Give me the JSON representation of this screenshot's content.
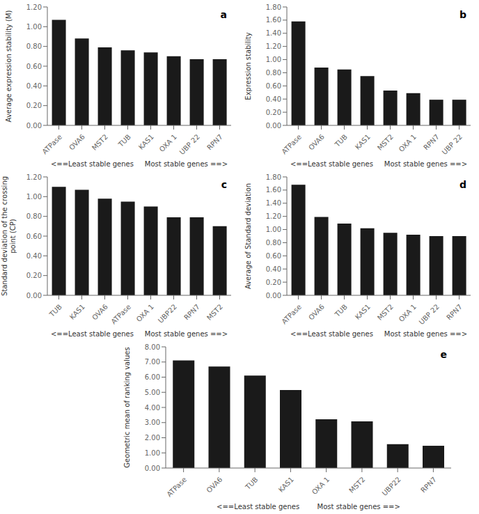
{
  "chart_data": [
    {
      "type": "bar",
      "title": "a",
      "categories": [
        "ATPase",
        "OVA6",
        "MST2",
        "TUB",
        "KAS1",
        "OXA 1",
        "UBP 22",
        "RPN7"
      ],
      "values": [
        1.07,
        0.88,
        0.79,
        0.76,
        0.74,
        0.7,
        0.67,
        0.67
      ],
      "color": "#1a1a1a",
      "x_label": "<==Least stable genes     Most stable genes ==>",
      "y_label": "Average expression stability (M)",
      "ylim": [
        0,
        1.2
      ],
      "yticks": [
        {
          "value": 0,
          "label": "0.00"
        },
        {
          "value": 0.2,
          "label": "0.20"
        },
        {
          "value": 0.4,
          "label": "0.40"
        },
        {
          "value": 0.6,
          "label": "0.60"
        },
        {
          "value": 0.8,
          "label": "0.80"
        },
        {
          "value": 1.0,
          "label": "1.00"
        },
        {
          "value": 1.2,
          "label": "1.20"
        }
      ],
      "grid": false
    },
    {
      "type": "bar",
      "title": "b",
      "categories": [
        "ATPase",
        "OVA6",
        "TUB",
        "KAS1",
        "MST2",
        "OXA 1",
        "RPN7",
        "UBP 22"
      ],
      "values": [
        1.58,
        0.88,
        0.85,
        0.75,
        0.53,
        0.49,
        0.39,
        0.39
      ],
      "color": "#1a1a1a",
      "x_label": "<==Least stable genes     Most stable genes ==>",
      "y_label": "Expression stability",
      "ylim": [
        0,
        1.8
      ],
      "yticks": [
        {
          "value": 0,
          "label": "0.00"
        },
        {
          "value": 0.2,
          "label": "0.20"
        },
        {
          "value": 0.4,
          "label": "0.40"
        },
        {
          "value": 0.6,
          "label": "0.60"
        },
        {
          "value": 0.8,
          "label": "0.80"
        },
        {
          "value": 1.0,
          "label": "1.00"
        },
        {
          "value": 1.2,
          "label": "1.20"
        },
        {
          "value": 1.4,
          "label": "1.40"
        },
        {
          "value": 1.6,
          "label": "1.60"
        },
        {
          "value": 1.8,
          "label": "1.80"
        }
      ],
      "grid": false
    },
    {
      "type": "bar",
      "title": "c",
      "categories": [
        "TUB",
        "KAS1",
        "OVA6",
        "ATPase",
        "OXA 1",
        "UBP22",
        "RPN7",
        "MST2"
      ],
      "values": [
        1.1,
        1.07,
        0.98,
        0.95,
        0.9,
        0.79,
        0.79,
        0.7
      ],
      "color": "#1a1a1a",
      "x_label": "<==Least stable genes     Most stable genes ==>",
      "y_label": "Standard deviation of the crossing\npoint (CP)",
      "ylim": [
        0,
        1.2
      ],
      "yticks": [
        {
          "value": 0,
          "label": "0.00"
        },
        {
          "value": 0.2,
          "label": "0.20"
        },
        {
          "value": 0.4,
          "label": "0.40"
        },
        {
          "value": 0.6,
          "label": "0.60"
        },
        {
          "value": 0.8,
          "label": "0.80"
        },
        {
          "value": 1.0,
          "label": "1.00"
        },
        {
          "value": 1.2,
          "label": "1.20"
        }
      ],
      "grid": false
    },
    {
      "type": "bar",
      "title": "d",
      "categories": [
        "ATPase",
        "OVA6",
        "TUB",
        "KAS1",
        "MST2",
        "OXA 1",
        "UBP 22",
        "RPN7"
      ],
      "values": [
        1.68,
        1.19,
        1.09,
        1.02,
        0.95,
        0.92,
        0.9,
        0.9
      ],
      "color": "#1a1a1a",
      "x_label": "<==Least stable genes     Most stable genes ==>",
      "y_label": "Average of Standard deviation",
      "ylim": [
        0,
        1.8
      ],
      "yticks": [
        {
          "value": 0,
          "label": "0.00"
        },
        {
          "value": 0.2,
          "label": "0.20"
        },
        {
          "value": 0.4,
          "label": "0.40"
        },
        {
          "value": 0.6,
          "label": "0.60"
        },
        {
          "value": 0.8,
          "label": "0.80"
        },
        {
          "value": 1.0,
          "label": "1.00"
        },
        {
          "value": 1.2,
          "label": "1.20"
        },
        {
          "value": 1.4,
          "label": "1.40"
        },
        {
          "value": 1.6,
          "label": "1.60"
        },
        {
          "value": 1.8,
          "label": "1.80"
        }
      ],
      "grid": false
    },
    {
      "type": "bar",
      "title": "e",
      "categories": [
        "ATPase",
        "OVA6",
        "TUB",
        "KAS1",
        "OXA 1",
        "MST2",
        "UBP22",
        "RPN7"
      ],
      "values": [
        7.1,
        6.7,
        6.1,
        5.15,
        3.22,
        3.08,
        1.58,
        1.47
      ],
      "color": "#1a1a1a",
      "x_label": "<==Least stable genes        Most stable genes ==>",
      "y_label": "Geometric mean of ranking values",
      "ylim": [
        0,
        8.0
      ],
      "yticks": [
        {
          "value": 0,
          "label": "0.00"
        },
        {
          "value": 1,
          "label": "1.00"
        },
        {
          "value": 2,
          "label": "2.00"
        },
        {
          "value": 3,
          "label": "3.00"
        },
        {
          "value": 4,
          "label": "4.00"
        },
        {
          "value": 5,
          "label": "5.00"
        },
        {
          "value": 6,
          "label": "6.00"
        },
        {
          "value": 7,
          "label": "7.00"
        },
        {
          "value": 8,
          "label": "8.00"
        }
      ],
      "grid": false
    }
  ]
}
